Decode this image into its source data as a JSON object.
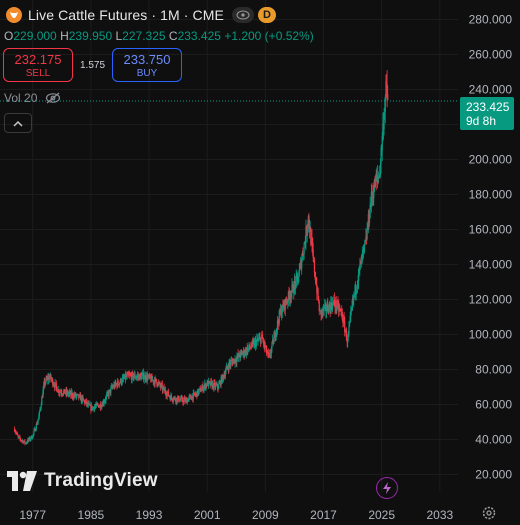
{
  "header": {
    "title": "Live Cattle Futures · 1M · CME",
    "badge": "D"
  },
  "ohlc": {
    "o_label": "O",
    "o": "229.000",
    "h_label": "H",
    "h": "239.950",
    "l_label": "L",
    "l": "227.325",
    "c_label": "C",
    "c": "233.425",
    "change": "+1.200 (+0.52%)"
  },
  "trade": {
    "sell_price": "232.175",
    "sell_label": "SELL",
    "spread": "1.575",
    "buy_price": "233.750",
    "buy_label": "BUY"
  },
  "volume": {
    "label": "Vol 20"
  },
  "price_label": {
    "value": "233.425",
    "countdown": "9d 8h"
  },
  "branding": {
    "logo_text": "TradingView"
  },
  "colors": {
    "up": "#089981",
    "down": "#f23645",
    "background": "#0f0f0f"
  },
  "chart_data": {
    "type": "candlestick",
    "interval": "1M",
    "yticks": [
      20,
      40,
      60,
      80,
      100,
      120,
      140,
      160,
      180,
      200,
      220,
      240,
      260,
      280
    ],
    "ytick_labels": [
      "20.000",
      "40.000",
      "60.000",
      "80.000",
      "100.000",
      "120.000",
      "140.000",
      "160.000",
      "180.000",
      "200.000",
      "220.000",
      "240.000",
      "260.000",
      "280.000"
    ],
    "xticks": [
      1977,
      1985,
      1993,
      2001,
      2009,
      2017,
      2025,
      2033
    ],
    "ylim": [
      10,
      290
    ],
    "xlim": [
      1972.5,
      2035.5
    ],
    "last_price": 233.425,
    "trend": [
      [
        1974.5,
        46
      ],
      [
        1975.0,
        41
      ],
      [
        1976.0,
        38
      ],
      [
        1977.0,
        42
      ],
      [
        1977.8,
        52
      ],
      [
        1978.6,
        72
      ],
      [
        1979.3,
        76
      ],
      [
        1980.5,
        68
      ],
      [
        1982.0,
        66
      ],
      [
        1983.5,
        64
      ],
      [
        1985.0,
        58
      ],
      [
        1986.5,
        60
      ],
      [
        1988.0,
        70
      ],
      [
        1990.0,
        76
      ],
      [
        1992.5,
        76
      ],
      [
        1994.0,
        73
      ],
      [
        1996.0,
        64
      ],
      [
        1998.0,
        62
      ],
      [
        1999.5,
        66
      ],
      [
        2001.0,
        72
      ],
      [
        2002.5,
        70
      ],
      [
        2004.0,
        83
      ],
      [
        2005.5,
        88
      ],
      [
        2007.0,
        93
      ],
      [
        2008.5,
        98
      ],
      [
        2009.5,
        86
      ],
      [
        2011.0,
        112
      ],
      [
        2012.5,
        124
      ],
      [
        2013.5,
        132
      ],
      [
        2014.5,
        155
      ],
      [
        2014.9,
        168
      ],
      [
        2015.6,
        142
      ],
      [
        2016.5,
        112
      ],
      [
        2017.5,
        115
      ],
      [
        2018.5,
        118
      ],
      [
        2019.5,
        112
      ],
      [
        2020.3,
        96
      ],
      [
        2021.0,
        118
      ],
      [
        2022.0,
        138
      ],
      [
        2022.8,
        152
      ],
      [
        2023.5,
        176
      ],
      [
        2024.0,
        185
      ],
      [
        2024.7,
        192
      ],
      [
        2025.0,
        208
      ],
      [
        2025.3,
        226
      ],
      [
        2025.6,
        240
      ],
      [
        2025.9,
        233.4
      ]
    ]
  }
}
